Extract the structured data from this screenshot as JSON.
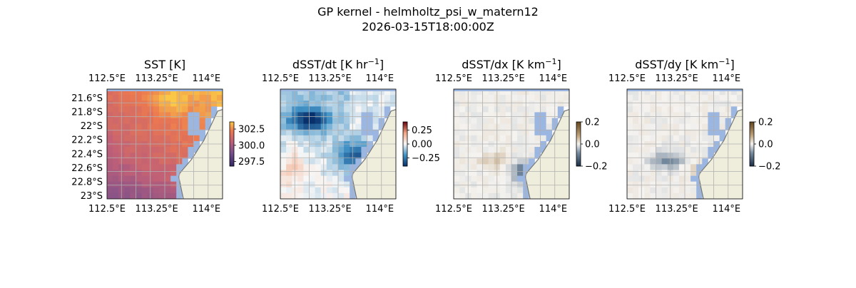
{
  "figure": {
    "title": "GP kernel - helmholtz_psi_w_matern12",
    "subtitle": "2026-03-15T18:00:00Z"
  },
  "colors": {
    "land": "#efeedc",
    "ocean_mask": "#9bb6e0",
    "grid": "#b0b0b0",
    "coast": "#777777"
  },
  "chart_data": [
    {
      "type": "heatmap",
      "title": "SST [K]",
      "title_unit_exp": "",
      "colormap": "plasma-like (dark purple to orange)",
      "lon_ticks": [
        "112.5°E",
        "113.25°E",
        "114°E"
      ],
      "lat_ticks": [
        "21.6°S",
        "21.8°S",
        "22°S",
        "22.2°S",
        "22.4°S",
        "22.6°S",
        "22.8°S",
        "23°S"
      ],
      "show_lat_labels": true,
      "lon_range": [
        112.5,
        114.25
      ],
      "lat_range": [
        -23.0,
        -21.5
      ],
      "colorbar": {
        "ticks": [
          "302.5",
          "300.0",
          "297.5"
        ],
        "values": [
          302.5,
          300.0,
          297.5
        ],
        "range": [
          296.8,
          303.6
        ]
      }
    },
    {
      "type": "heatmap",
      "title": "dSST/dt [K hr",
      "title_unit_exp": "−1",
      "title_close": "]",
      "colormap": "diverging blue-white-red",
      "lon_ticks": [
        "112.5°E",
        "113.25°E",
        "114°E"
      ],
      "lat_ticks": [],
      "show_lat_labels": false,
      "lon_range": [
        112.5,
        114.25
      ],
      "lat_range": [
        -23.0,
        -21.5
      ],
      "colorbar": {
        "ticks": [
          "0.25",
          "0.00",
          "−0.25"
        ],
        "values": [
          0.25,
          0.0,
          -0.25
        ],
        "range": [
          -0.4,
          0.4
        ]
      }
    },
    {
      "type": "heatmap",
      "title": "dSST/dx [K km",
      "title_unit_exp": "−1",
      "title_close": "]",
      "colormap": "diverging blue-white-brown",
      "lon_ticks": [
        "112.5°E",
        "113.25°E",
        "114°E"
      ],
      "lat_ticks": [],
      "show_lat_labels": false,
      "lon_range": [
        112.5,
        114.25
      ],
      "lat_range": [
        -23.0,
        -21.5
      ],
      "colorbar": {
        "ticks": [
          "0.2",
          "0.0",
          "−0.2"
        ],
        "values": [
          0.2,
          0.0,
          -0.2
        ],
        "range": [
          -0.2,
          0.2
        ]
      }
    },
    {
      "type": "heatmap",
      "title": "dSST/dy [K km",
      "title_unit_exp": "−1",
      "title_close": "]",
      "colormap": "diverging blue-white-brown",
      "lon_ticks": [
        "112.5°E",
        "113.25°E",
        "114°E"
      ],
      "lat_ticks": [],
      "show_lat_labels": false,
      "lon_range": [
        112.5,
        114.25
      ],
      "lat_range": [
        -23.0,
        -21.5
      ],
      "colorbar": {
        "ticks": [
          "0.2",
          "0.0",
          "−0.2"
        ],
        "values": [
          0.2,
          0.0,
          -0.2
        ],
        "range": [
          -0.2,
          0.2
        ]
      }
    }
  ]
}
